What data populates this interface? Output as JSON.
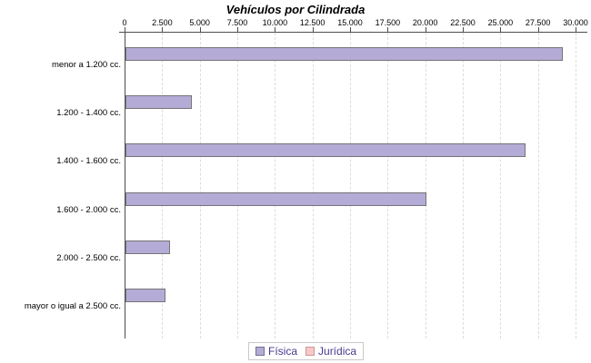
{
  "title": "Vehículos por Cilindrada",
  "chart_data": {
    "type": "bar",
    "orientation": "horizontal",
    "title": "Vehículos por Cilindrada",
    "categories": [
      "menor a 1.200 cc.",
      "1.200 - 1.400 cc.",
      "1.400 - 1.600 cc.",
      "1.600 - 2.000 cc.",
      "2.000 - 2.500 cc.",
      "mayor o igual a 2.500 cc."
    ],
    "series": [
      {
        "name": "Física",
        "color": "#b5abd7",
        "border_color": "#757575",
        "values": [
          29100,
          4400,
          26600,
          20000,
          2950,
          2650
        ]
      },
      {
        "name": "Jurídica",
        "color": "#f9c7c7",
        "border_color": "#cc9999",
        "values": [
          0,
          0,
          0,
          0,
          0,
          0
        ]
      }
    ],
    "x_axis": {
      "position": "top",
      "min": 0,
      "max": 30000,
      "tick_step": 2500,
      "tick_labels": [
        "0",
        "2.500",
        "5.000",
        "7.500",
        "10.000",
        "12.500",
        "15.000",
        "17.500",
        "20.000",
        "22.500",
        "25.000",
        "27.500",
        "30.000"
      ],
      "grid": "dashed-vertical"
    },
    "legend": {
      "position": "bottom",
      "text_color": "#453a8e",
      "entries": [
        "Física",
        "Jurídica"
      ]
    }
  }
}
